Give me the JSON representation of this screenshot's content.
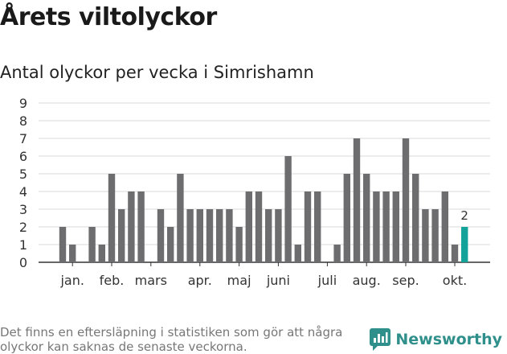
{
  "header": {
    "title": "Årets viltolyckor",
    "subtitle": "Antal olyckor per vecka i Simrishamn"
  },
  "footer": {
    "note": "Det finns en eftersläpning i statistiken som gör att några olyckor kan saknas de senaste veckorna.",
    "brand": "Newsworthy"
  },
  "colors": {
    "bar": "#6d6d70",
    "highlight": "#14a39a",
    "grid": "#d9d9d9",
    "brand": "#2f8f8a"
  },
  "icons": {
    "brand_logo": "newsworthy-logo-icon"
  },
  "chart_data": {
    "type": "bar",
    "weeks": [
      1,
      2,
      3,
      4,
      5,
      6,
      7,
      8,
      9,
      10,
      11,
      12,
      13,
      14,
      15,
      16,
      17,
      18,
      19,
      20,
      21,
      22,
      23,
      24,
      25,
      26,
      27,
      28,
      29,
      30,
      31,
      32,
      33,
      34,
      35,
      36,
      37,
      38,
      39,
      40,
      41,
      42
    ],
    "values": [
      2,
      1,
      0,
      2,
      1,
      5,
      3,
      4,
      4,
      0,
      3,
      2,
      5,
      3,
      3,
      3,
      3,
      3,
      2,
      4,
      4,
      3,
      3,
      6,
      1,
      4,
      4,
      0,
      1,
      5,
      7,
      5,
      4,
      4,
      4,
      7,
      5,
      3,
      3,
      4,
      1,
      2
    ],
    "highlight_index": 41,
    "highlight_label": "2",
    "month_labels": [
      {
        "label": "jan.",
        "pos": 1.5
      },
      {
        "label": "feb.",
        "pos": 5.5
      },
      {
        "label": "mars",
        "pos": 9.5
      },
      {
        "label": "apr.",
        "pos": 14.5
      },
      {
        "label": "maj",
        "pos": 18.5
      },
      {
        "label": "juni",
        "pos": 22.5
      },
      {
        "label": "juli",
        "pos": 27.5
      },
      {
        "label": "aug.",
        "pos": 31.5
      },
      {
        "label": "sep.",
        "pos": 35.5
      },
      {
        "label": "okt.",
        "pos": 40.5
      }
    ],
    "y_ticks": [
      0,
      1,
      2,
      3,
      4,
      5,
      6,
      7,
      8,
      9
    ],
    "ylim": [
      0,
      9
    ],
    "grid": true,
    "title": "Antal olyckor per vecka i Simrishamn"
  }
}
